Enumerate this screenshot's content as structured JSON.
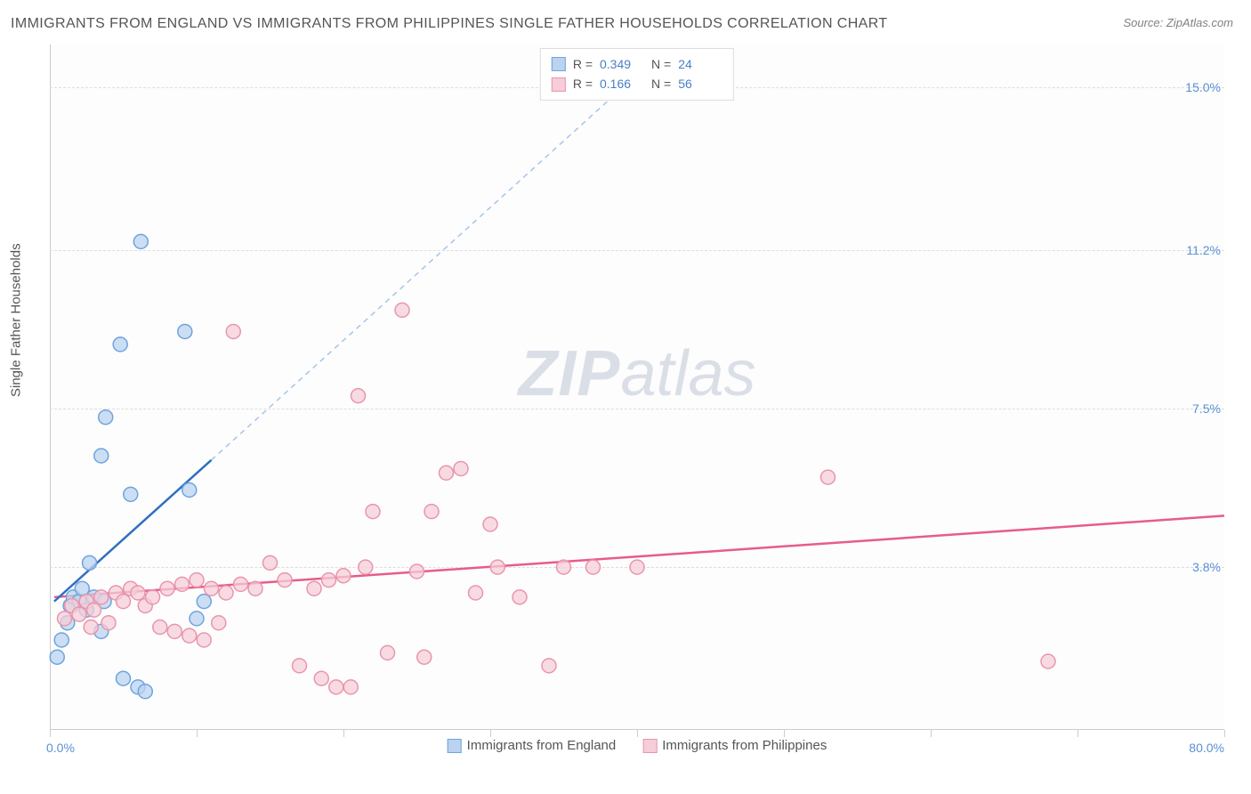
{
  "title": "IMMIGRANTS FROM ENGLAND VS IMMIGRANTS FROM PHILIPPINES SINGLE FATHER HOUSEHOLDS CORRELATION CHART",
  "source": "Source: ZipAtlas.com",
  "ylabel": "Single Father Households",
  "watermark_zip": "ZIP",
  "watermark_atlas": "atlas",
  "chart": {
    "type": "scatter",
    "xlim": [
      0,
      80
    ],
    "ylim": [
      0,
      16
    ],
    "x_start_label": "0.0%",
    "x_end_label": "80.0%",
    "xtick_positions": [
      0,
      10,
      20,
      30,
      40,
      50,
      60,
      70,
      80
    ],
    "ytick_labels": [
      {
        "value": 3.8,
        "label": "3.8%"
      },
      {
        "value": 7.5,
        "label": "7.5%"
      },
      {
        "value": 11.2,
        "label": "11.2%"
      },
      {
        "value": 15.0,
        "label": "15.0%"
      }
    ],
    "background_color": "#fdfdfd",
    "grid_color": "#dddddd",
    "marker_radius": 8,
    "series": [
      {
        "name": "Immigrants from England",
        "fill": "#b9d3f0",
        "stroke": "#6fa3dc",
        "trend_color": "#2f6fc2",
        "trend_dash_color": "#a6c4e8",
        "trend_solid": {
          "x1": 0.3,
          "y1": 3.0,
          "x2": 11.0,
          "y2": 6.3
        },
        "trend_dashed": {
          "x1": 11.0,
          "y1": 6.3,
          "x2": 40.0,
          "y2": 15.3
        },
        "r": "0.349",
        "n": "24",
        "points": [
          {
            "x": 0.5,
            "y": 1.7
          },
          {
            "x": 0.8,
            "y": 2.1
          },
          {
            "x": 1.2,
            "y": 2.5
          },
          {
            "x": 1.4,
            "y": 2.9
          },
          {
            "x": 1.6,
            "y": 3.1
          },
          {
            "x": 2.0,
            "y": 3.0
          },
          {
            "x": 2.2,
            "y": 3.3
          },
          {
            "x": 2.5,
            "y": 2.8
          },
          {
            "x": 2.7,
            "y": 3.9
          },
          {
            "x": 3.0,
            "y": 3.1
          },
          {
            "x": 3.5,
            "y": 2.3
          },
          {
            "x": 3.7,
            "y": 3.0
          },
          {
            "x": 5.0,
            "y": 1.2
          },
          {
            "x": 5.5,
            "y": 5.5
          },
          {
            "x": 6.0,
            "y": 1.0
          },
          {
            "x": 6.5,
            "y": 0.9
          },
          {
            "x": 3.5,
            "y": 6.4
          },
          {
            "x": 3.8,
            "y": 7.3
          },
          {
            "x": 4.8,
            "y": 9.0
          },
          {
            "x": 9.5,
            "y": 5.6
          },
          {
            "x": 9.2,
            "y": 9.3
          },
          {
            "x": 6.2,
            "y": 11.4
          },
          {
            "x": 10.5,
            "y": 3.0
          },
          {
            "x": 10.0,
            "y": 2.6
          }
        ]
      },
      {
        "name": "Immigrants from Philippines",
        "fill": "#f6cdd8",
        "stroke": "#e995ac",
        "trend_color": "#e85b8c",
        "trend_solid": {
          "x1": 0.3,
          "y1": 3.1,
          "x2": 80.0,
          "y2": 5.0
        },
        "r": "0.166",
        "n": "56",
        "points": [
          {
            "x": 1.0,
            "y": 2.6
          },
          {
            "x": 1.5,
            "y": 2.9
          },
          {
            "x": 2.0,
            "y": 2.7
          },
          {
            "x": 2.5,
            "y": 3.0
          },
          {
            "x": 3.0,
            "y": 2.8
          },
          {
            "x": 3.5,
            "y": 3.1
          },
          {
            "x": 4.0,
            "y": 2.5
          },
          {
            "x": 4.5,
            "y": 3.2
          },
          {
            "x": 5.0,
            "y": 3.0
          },
          {
            "x": 5.5,
            "y": 3.3
          },
          {
            "x": 6.0,
            "y": 3.2
          },
          {
            "x": 6.5,
            "y": 2.9
          },
          {
            "x": 7.0,
            "y": 3.1
          },
          {
            "x": 7.5,
            "y": 2.4
          },
          {
            "x": 8.0,
            "y": 3.3
          },
          {
            "x": 8.5,
            "y": 2.3
          },
          {
            "x": 9.0,
            "y": 3.4
          },
          {
            "x": 9.5,
            "y": 2.2
          },
          {
            "x": 10.0,
            "y": 3.5
          },
          {
            "x": 10.5,
            "y": 2.1
          },
          {
            "x": 11.0,
            "y": 3.3
          },
          {
            "x": 11.5,
            "y": 2.5
          },
          {
            "x": 12.0,
            "y": 3.2
          },
          {
            "x": 12.5,
            "y": 9.3
          },
          {
            "x": 13.0,
            "y": 3.4
          },
          {
            "x": 14.0,
            "y": 3.3
          },
          {
            "x": 15.0,
            "y": 3.9
          },
          {
            "x": 16.0,
            "y": 3.5
          },
          {
            "x": 17.0,
            "y": 1.5
          },
          {
            "x": 18.0,
            "y": 3.3
          },
          {
            "x": 18.5,
            "y": 1.2
          },
          {
            "x": 19.0,
            "y": 3.5
          },
          {
            "x": 19.5,
            "y": 1.0
          },
          {
            "x": 20.0,
            "y": 3.6
          },
          {
            "x": 20.5,
            "y": 1.0
          },
          {
            "x": 21.0,
            "y": 7.8
          },
          {
            "x": 21.5,
            "y": 3.8
          },
          {
            "x": 22.0,
            "y": 5.1
          },
          {
            "x": 23.0,
            "y": 1.8
          },
          {
            "x": 24.0,
            "y": 9.8
          },
          {
            "x": 25.0,
            "y": 3.7
          },
          {
            "x": 25.5,
            "y": 1.7
          },
          {
            "x": 26.0,
            "y": 5.1
          },
          {
            "x": 27.0,
            "y": 6.0
          },
          {
            "x": 28.0,
            "y": 6.1
          },
          {
            "x": 29.0,
            "y": 3.2
          },
          {
            "x": 30.0,
            "y": 4.8
          },
          {
            "x": 30.5,
            "y": 3.8
          },
          {
            "x": 32.0,
            "y": 3.1
          },
          {
            "x": 34.0,
            "y": 1.5
          },
          {
            "x": 35.0,
            "y": 3.8
          },
          {
            "x": 37.0,
            "y": 3.8
          },
          {
            "x": 40.0,
            "y": 3.8
          },
          {
            "x": 53.0,
            "y": 5.9
          },
          {
            "x": 68.0,
            "y": 1.6
          },
          {
            "x": 2.8,
            "y": 2.4
          }
        ]
      }
    ]
  },
  "legend": {
    "series1_label": "Immigrants from England",
    "series2_label": "Immigrants from Philippines"
  },
  "stats_labels": {
    "r": "R =",
    "n": "N ="
  }
}
